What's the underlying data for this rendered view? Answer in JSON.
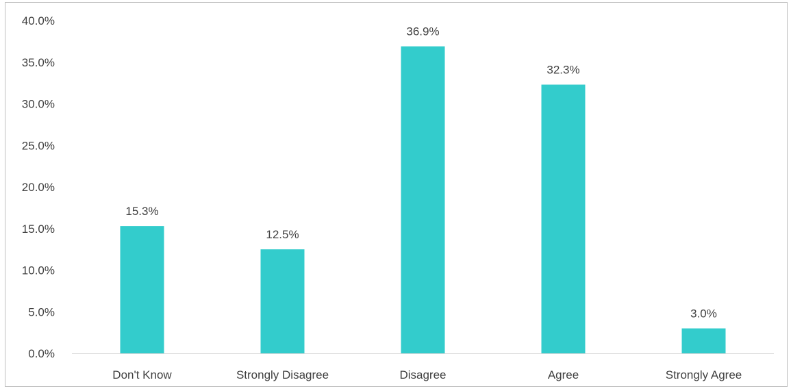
{
  "chart_data": {
    "type": "bar",
    "categories": [
      "Don't Know",
      "Strongly Disagree",
      "Disagree",
      "Agree",
      "Strongly Agree"
    ],
    "values": [
      15.3,
      12.5,
      36.9,
      32.3,
      3.0
    ],
    "data_labels": [
      "15.3%",
      "12.5%",
      "36.9%",
      "32.3%",
      "3.0%"
    ],
    "y_ticks": [
      0,
      5,
      10,
      15,
      20,
      25,
      30,
      35,
      40
    ],
    "y_tick_labels": [
      "0.0%",
      "5.0%",
      "10.0%",
      "15.0%",
      "20.0%",
      "25.0%",
      "30.0%",
      "35.0%",
      "40.0%"
    ],
    "ylim": [
      0,
      40
    ],
    "title": "",
    "xlabel": "",
    "ylabel": "",
    "grid": false,
    "legend": "none",
    "bar_color": "#33CCCC",
    "text_color": "#404040",
    "axis_color": "#D9D9D9"
  }
}
